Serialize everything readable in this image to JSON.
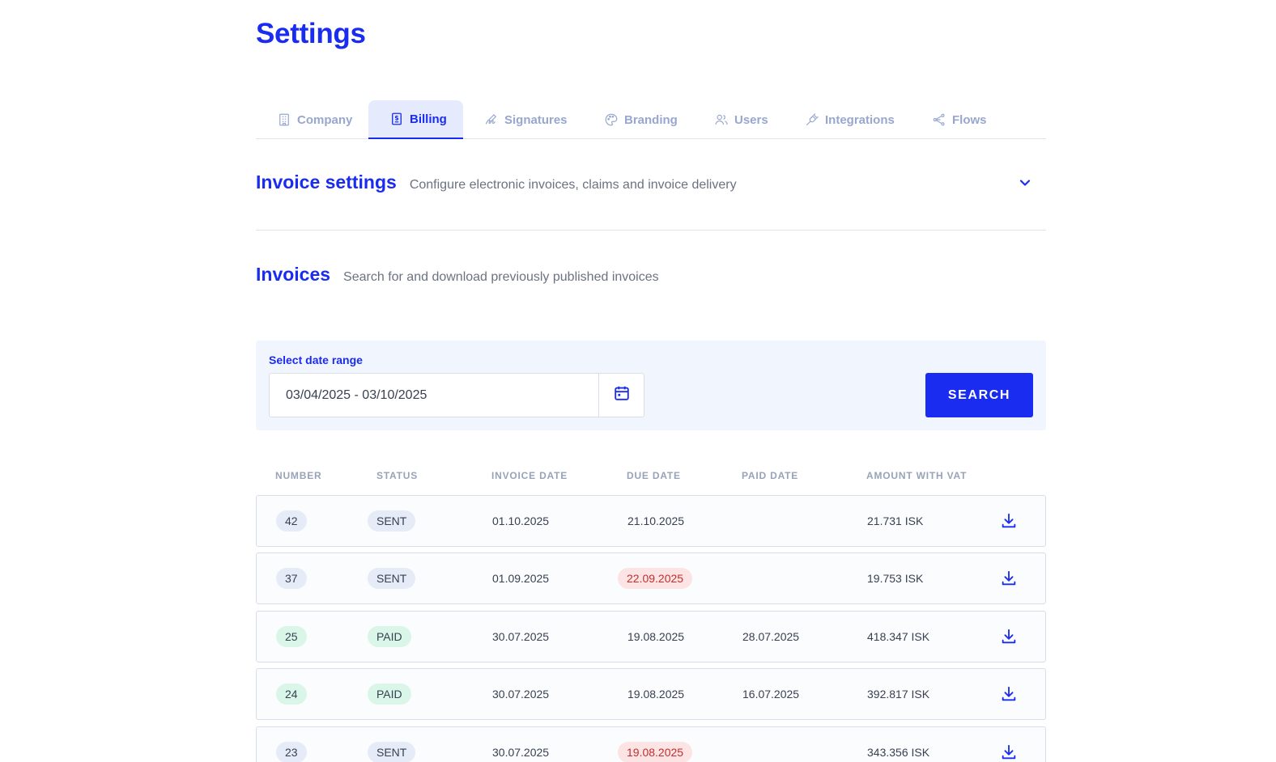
{
  "page": {
    "title": "Settings"
  },
  "tabs": [
    {
      "label": "Company",
      "icon": "building-icon",
      "active": false
    },
    {
      "label": "Billing",
      "icon": "receipt-icon",
      "active": true
    },
    {
      "label": "Signatures",
      "icon": "signature-icon",
      "active": false
    },
    {
      "label": "Branding",
      "icon": "palette-icon",
      "active": false
    },
    {
      "label": "Users",
      "icon": "users-icon",
      "active": false
    },
    {
      "label": "Integrations",
      "icon": "plug-icon",
      "active": false
    },
    {
      "label": "Flows",
      "icon": "share-nodes-icon",
      "active": false
    }
  ],
  "invoice_settings": {
    "title": "Invoice settings",
    "description": "Configure electronic invoices, claims and invoice delivery"
  },
  "invoices": {
    "title": "Invoices",
    "description": "Search for and download previously published invoices"
  },
  "search": {
    "range_label": "Select date range",
    "date_range": "03/04/2025 - 03/10/2025",
    "button_label": "SEARCH"
  },
  "table": {
    "headers": [
      "NUMBER",
      "STATUS",
      "INVOICE DATE",
      "DUE DATE",
      "PAID DATE",
      "AMOUNT WITH VAT"
    ],
    "rows": [
      {
        "number": "42",
        "status": "SENT",
        "invoice_date": "01.10.2025",
        "due_date": "21.10.2025",
        "due_overdue": false,
        "paid_date": "",
        "amount": "21.731 ISK"
      },
      {
        "number": "37",
        "status": "SENT",
        "invoice_date": "01.09.2025",
        "due_date": "22.09.2025",
        "due_overdue": true,
        "paid_date": "",
        "amount": "19.753 ISK"
      },
      {
        "number": "25",
        "status": "PAID",
        "invoice_date": "30.07.2025",
        "due_date": "19.08.2025",
        "due_overdue": false,
        "paid_date": "28.07.2025",
        "amount": "418.347 ISK"
      },
      {
        "number": "24",
        "status": "PAID",
        "invoice_date": "30.07.2025",
        "due_date": "19.08.2025",
        "due_overdue": false,
        "paid_date": "16.07.2025",
        "amount": "392.817 ISK"
      },
      {
        "number": "23",
        "status": "SENT",
        "invoice_date": "30.07.2025",
        "due_date": "19.08.2025",
        "due_overdue": true,
        "paid_date": "",
        "amount": "343.356 ISK"
      }
    ]
  },
  "colors": {
    "accent": "#1a2cf0",
    "tab_inactive": "#98a7cf",
    "paid_pill": "#d9f6e9",
    "sent_pill": "#e5ebf7",
    "overdue_pill": "#fde4e4",
    "overdue_text": "#c22d2d"
  }
}
